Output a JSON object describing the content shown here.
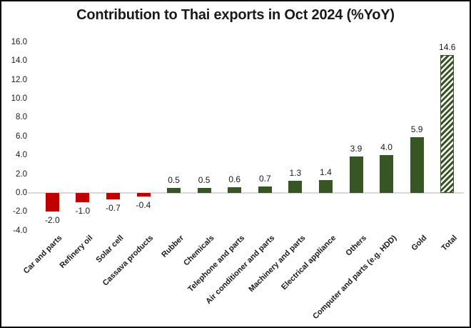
{
  "title": "Contribution to Thai exports in Oct 2024 (%YoY)",
  "colors": {
    "negative_bar": "#c00000",
    "positive_bar": "#375623",
    "hatch_background": "#ffffff",
    "zero_line": "#d9d9d9",
    "text": "#1a1a1a"
  },
  "chart_data": {
    "type": "bar",
    "title": "Contribution to Thai exports in Oct 2024 (%YoY)",
    "xlabel": "",
    "ylabel": "",
    "categories": [
      "Car and parts",
      "Refinery oil",
      "Solar cell",
      "Cassava products",
      "Rubber",
      "Chemicals",
      "Telephone and parts",
      "Air conditioner and parts",
      "Machinery and parts",
      "Electrical appliance",
      "Others",
      "Computer and parts (e.g. HDD)",
      "Gold",
      "Total"
    ],
    "values": [
      -2.0,
      -1.0,
      -0.7,
      -0.4,
      0.5,
      0.5,
      0.6,
      0.7,
      1.3,
      1.4,
      3.9,
      4.0,
      5.9,
      14.6
    ],
    "data_labels": [
      "-2.0",
      "-1.0",
      "-0.7",
      "-0.4",
      "0.5",
      "0.5",
      "0.6",
      "0.7",
      "1.3",
      "1.4",
      "3.9",
      "4.0",
      "5.9",
      "14.6"
    ],
    "hatched_categories": [
      "Total"
    ],
    "ylim": [
      -4,
      16
    ],
    "ytick_step": 2,
    "ytick_labels": [
      "16.0",
      "14.0",
      "12.0",
      "10.0",
      "8.0",
      "6.0",
      "4.0",
      "2.0",
      "0.0",
      "-2.0",
      "-4.0"
    ],
    "grid": false,
    "legend": "none",
    "x_label_rotation_deg": 45
  }
}
